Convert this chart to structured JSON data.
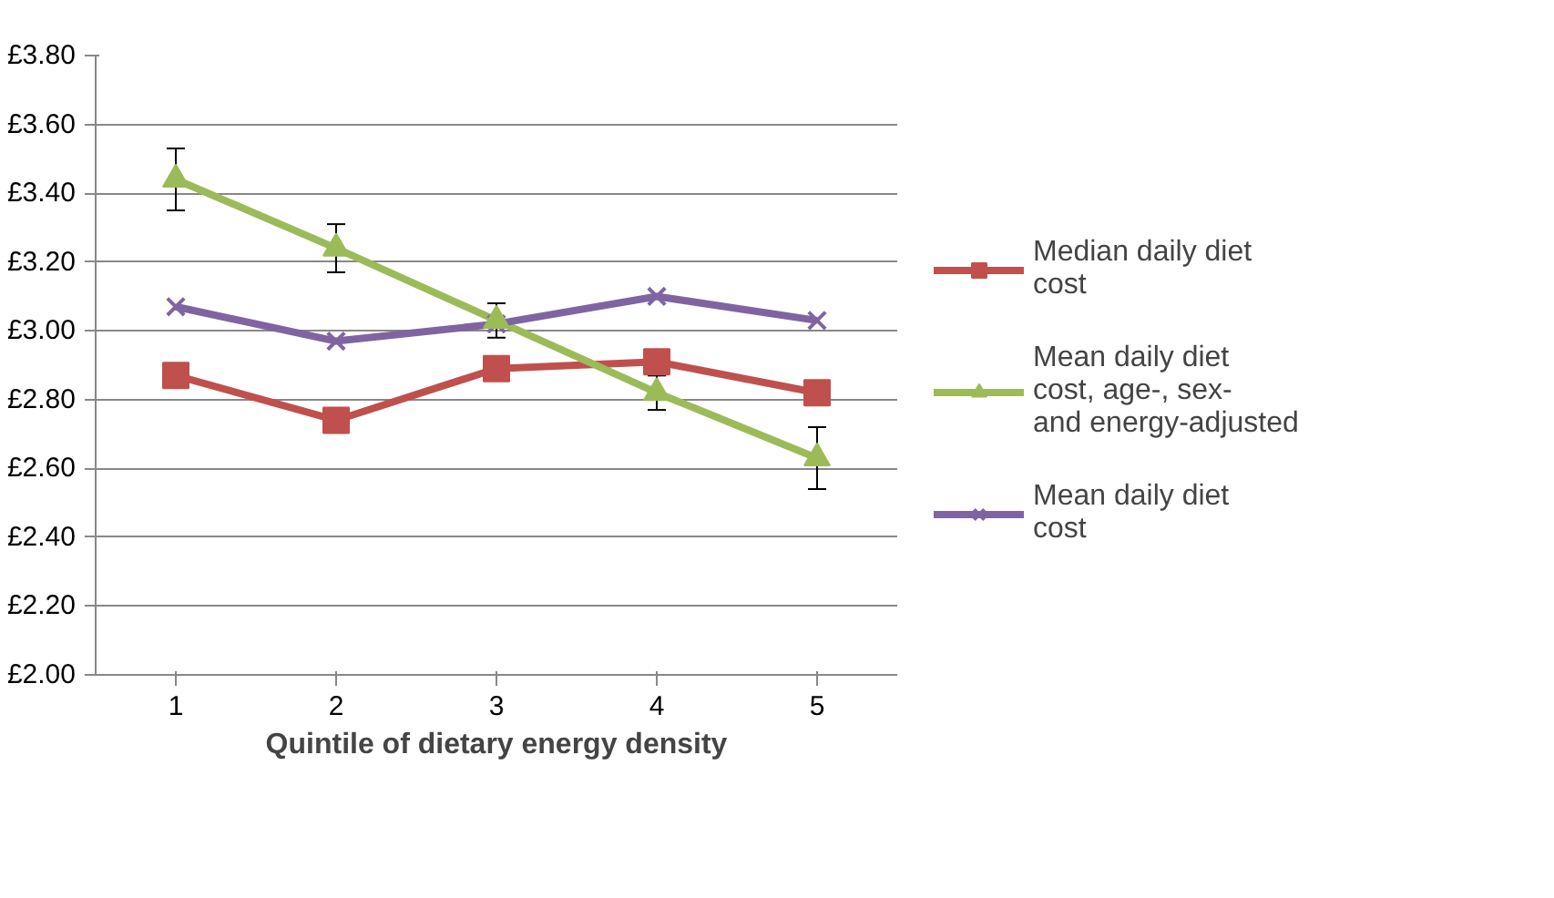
{
  "chart_data": {
    "type": "line",
    "xlabel": "Quintile of dietary energy density",
    "categories": [
      "1",
      "2",
      "3",
      "4",
      "5"
    ],
    "ylim": [
      2.0,
      3.8
    ],
    "yticks": [
      {
        "value": 2.0,
        "label": "£2.00"
      },
      {
        "value": 2.2,
        "label": "£2.20"
      },
      {
        "value": 2.4,
        "label": "£2.40"
      },
      {
        "value": 2.6,
        "label": "£2.60"
      },
      {
        "value": 2.8,
        "label": "£2.80"
      },
      {
        "value": 3.0,
        "label": "£3.00"
      },
      {
        "value": 3.2,
        "label": "£3.20"
      },
      {
        "value": 3.4,
        "label": "£3.40"
      },
      {
        "value": 3.6,
        "label": "£3.60"
      },
      {
        "value": 3.8,
        "label": "£3.80"
      }
    ],
    "grid": "y",
    "legend": "right",
    "series": [
      {
        "name": "Median daily diet cost",
        "color": "#c0504d",
        "marker": "square",
        "values": [
          2.87,
          2.74,
          2.89,
          2.91,
          2.82
        ]
      },
      {
        "name": "Mean daily diet cost, age-, sex- and energy-adjusted",
        "color": "#9bbb59",
        "marker": "triangle",
        "values": [
          3.44,
          3.24,
          3.03,
          2.82,
          2.63
        ],
        "errors": [
          0.09,
          0.07,
          0.05,
          0.05,
          0.09
        ]
      },
      {
        "name": "Mean daily diet cost",
        "color": "#8064a2",
        "marker": "x",
        "values": [
          3.07,
          2.97,
          3.02,
          3.1,
          3.03
        ]
      }
    ]
  }
}
